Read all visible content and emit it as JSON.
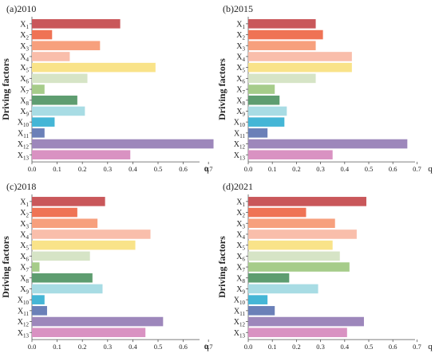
{
  "colors": {
    "palette": [
      "#c9575a",
      "#ef7355",
      "#f7a07d",
      "#f9beab",
      "#f9e389",
      "#d6e4c6",
      "#a6cc8a",
      "#5e9d70",
      "#a8dce4",
      "#45b6d6",
      "#6b80b8",
      "#9d87bb",
      "#d992c2"
    ],
    "axis": "#555555"
  },
  "chart_data": [
    {
      "type": "bar",
      "orientation": "horizontal",
      "title": "(a)2010",
      "ylabel": "Driving factors",
      "xlabel": "q",
      "xlim": [
        0,
        0.72
      ],
      "xticks": [
        "0.0",
        "0.1",
        "0.2",
        "0.3",
        "0.4",
        "0.5",
        "0.6",
        "0.7"
      ],
      "tick_values": [
        0,
        0.1,
        0.2,
        0.3,
        0.4,
        0.5,
        0.6,
        0.7
      ],
      "categories": [
        "X1",
        "X2",
        "X3",
        "X4",
        "X5",
        "X6",
        "X7",
        "X8",
        "X9",
        "X10",
        "X11",
        "X12",
        "X13"
      ],
      "values": [
        0.35,
        0.08,
        0.27,
        0.15,
        0.49,
        0.22,
        0.05,
        0.18,
        0.21,
        0.09,
        0.05,
        0.72,
        0.39
      ]
    },
    {
      "type": "bar",
      "orientation": "horizontal",
      "title": "(b)2015",
      "ylabel": "Driving factors",
      "xlabel": "q",
      "xlim": [
        0,
        0.68
      ],
      "xticks": [
        "0.0",
        "0.1",
        "0.2",
        "0.3",
        "0.4",
        "0.5",
        "0.6",
        "0.7"
      ],
      "tick_values": [
        0,
        0.1,
        0.2,
        0.3,
        0.4,
        0.5,
        0.6,
        0.7
      ],
      "categories": [
        "X1",
        "X2",
        "X3",
        "X4",
        "X5",
        "X6",
        "X7",
        "X8",
        "X9",
        "X10",
        "X11",
        "X12",
        "X13"
      ],
      "values": [
        0.28,
        0.31,
        0.28,
        0.43,
        0.43,
        0.28,
        0.11,
        0.13,
        0.16,
        0.15,
        0.08,
        0.66,
        0.35
      ]
    },
    {
      "type": "bar",
      "orientation": "horizontal",
      "title": "(c)2018",
      "ylabel": "Driving factors",
      "xlabel": "q",
      "xlim": [
        0,
        0.72
      ],
      "xticks": [
        "0.0",
        "0.1",
        "0.2",
        "0.3",
        "0.4",
        "0.5",
        "0.6",
        "0.7"
      ],
      "tick_values": [
        0,
        0.1,
        0.2,
        0.3,
        0.4,
        0.5,
        0.6,
        0.7
      ],
      "categories": [
        "X1",
        "X2",
        "X3",
        "X4",
        "X5",
        "X6",
        "X7",
        "X8",
        "X9",
        "X10",
        "X11",
        "X12",
        "X13"
      ],
      "values": [
        0.29,
        0.18,
        0.26,
        0.47,
        0.41,
        0.23,
        0.03,
        0.24,
        0.28,
        0.05,
        0.06,
        0.52,
        0.45
      ]
    },
    {
      "type": "bar",
      "orientation": "horizontal",
      "title": "(d)2021",
      "ylabel": "Driving factors",
      "xlabel": "q",
      "xlim": [
        0,
        0.72
      ],
      "xticks": [
        "0.0",
        "0.1",
        "0.2",
        "0.3",
        "0.4",
        "0.5",
        "0.6",
        "0.7"
      ],
      "tick_values": [
        0,
        0.1,
        0.2,
        0.3,
        0.4,
        0.5,
        0.6,
        0.7
      ],
      "categories": [
        "X1",
        "X2",
        "X3",
        "X4",
        "X5",
        "X6",
        "X7",
        "X8",
        "X9",
        "X10",
        "X11",
        "X12",
        "X13"
      ],
      "values": [
        0.49,
        0.24,
        0.36,
        0.45,
        0.35,
        0.38,
        0.42,
        0.17,
        0.29,
        0.08,
        0.11,
        0.48,
        0.41
      ]
    }
  ]
}
